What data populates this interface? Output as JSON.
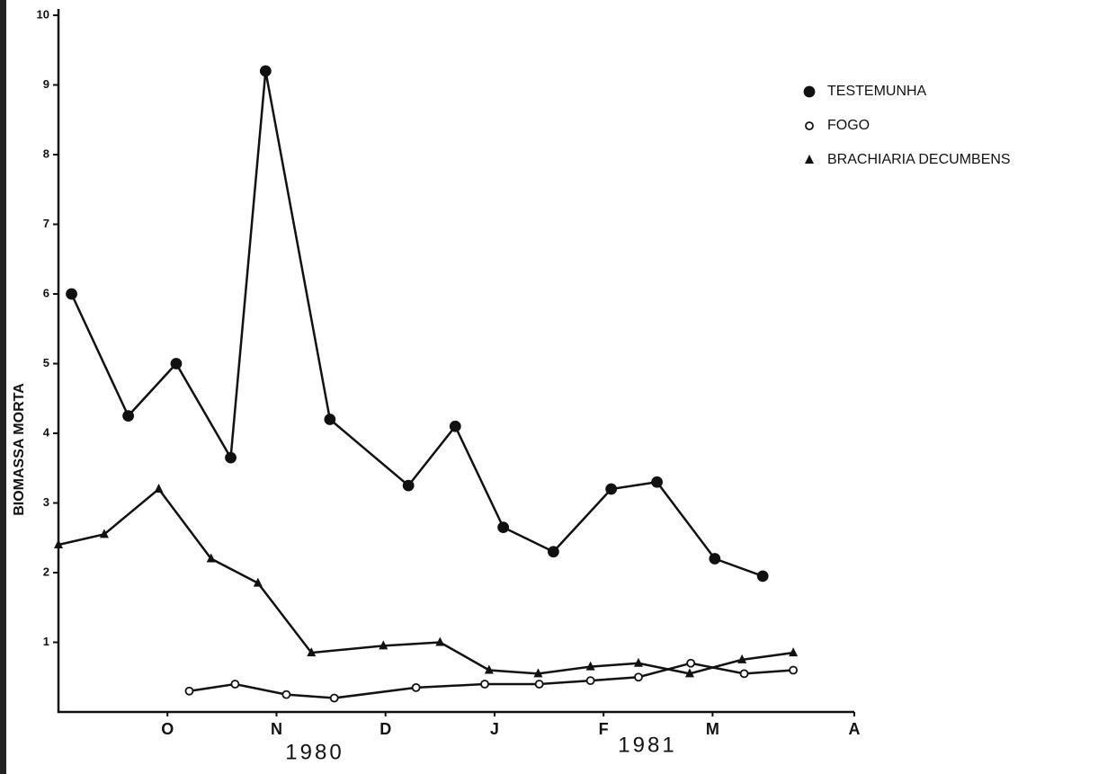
{
  "chart_data": {
    "type": "line",
    "y_label": "BIOMASSA MORTA",
    "xlim": [
      0,
      7.3
    ],
    "xticks": [
      {
        "value": 1,
        "label": "O"
      },
      {
        "value": 2,
        "label": "N"
      },
      {
        "value": 3,
        "label": "D"
      },
      {
        "value": 4,
        "label": "J"
      },
      {
        "value": 5,
        "label": "F"
      },
      {
        "value": 6,
        "label": "M"
      },
      {
        "value": 7.3,
        "label": "A"
      }
    ],
    "ylim": [
      0,
      10
    ],
    "yticks": [
      1,
      2,
      3,
      4,
      5,
      6,
      7,
      8,
      9,
      10
    ],
    "annotations": [
      "1980",
      "1981"
    ],
    "legend": "top-right",
    "series": [
      {
        "name": "TESTEMUNHA",
        "color": "#111111",
        "marker": "filled-circle",
        "x": [
          0.12,
          0.64,
          1.08,
          1.58,
          1.9,
          2.49,
          3.21,
          3.64,
          4.08,
          4.54,
          5.07,
          5.49,
          6.02,
          6.46
        ],
        "values": [
          6.0,
          4.25,
          5.0,
          3.65,
          9.2,
          4.2,
          3.25,
          4.1,
          2.65,
          2.3,
          3.2,
          3.3,
          2.2,
          1.95
        ]
      },
      {
        "name": "FOGO",
        "color": "#111111",
        "marker": "open-circle",
        "x": [
          1.2,
          1.62,
          2.09,
          2.53,
          3.28,
          3.91,
          4.41,
          4.88,
          5.32,
          5.8,
          6.29,
          6.74
        ],
        "values": [
          0.3,
          0.4,
          0.25,
          0.2,
          0.35,
          0.4,
          0.4,
          0.45,
          0.5,
          0.7,
          0.55,
          0.6
        ]
      },
      {
        "name": "BRACHIARIA DECUMBENS",
        "color": "#111111",
        "marker": "triangle",
        "x": [
          0.0,
          0.42,
          0.92,
          1.4,
          1.83,
          2.32,
          2.98,
          3.5,
          3.95,
          4.4,
          4.88,
          5.32,
          5.79,
          6.27,
          6.74
        ],
        "values": [
          2.4,
          2.55,
          3.2,
          2.2,
          1.85,
          0.85,
          0.95,
          1.0,
          0.6,
          0.55,
          0.65,
          0.7,
          0.55,
          0.75,
          0.85
        ]
      }
    ]
  }
}
